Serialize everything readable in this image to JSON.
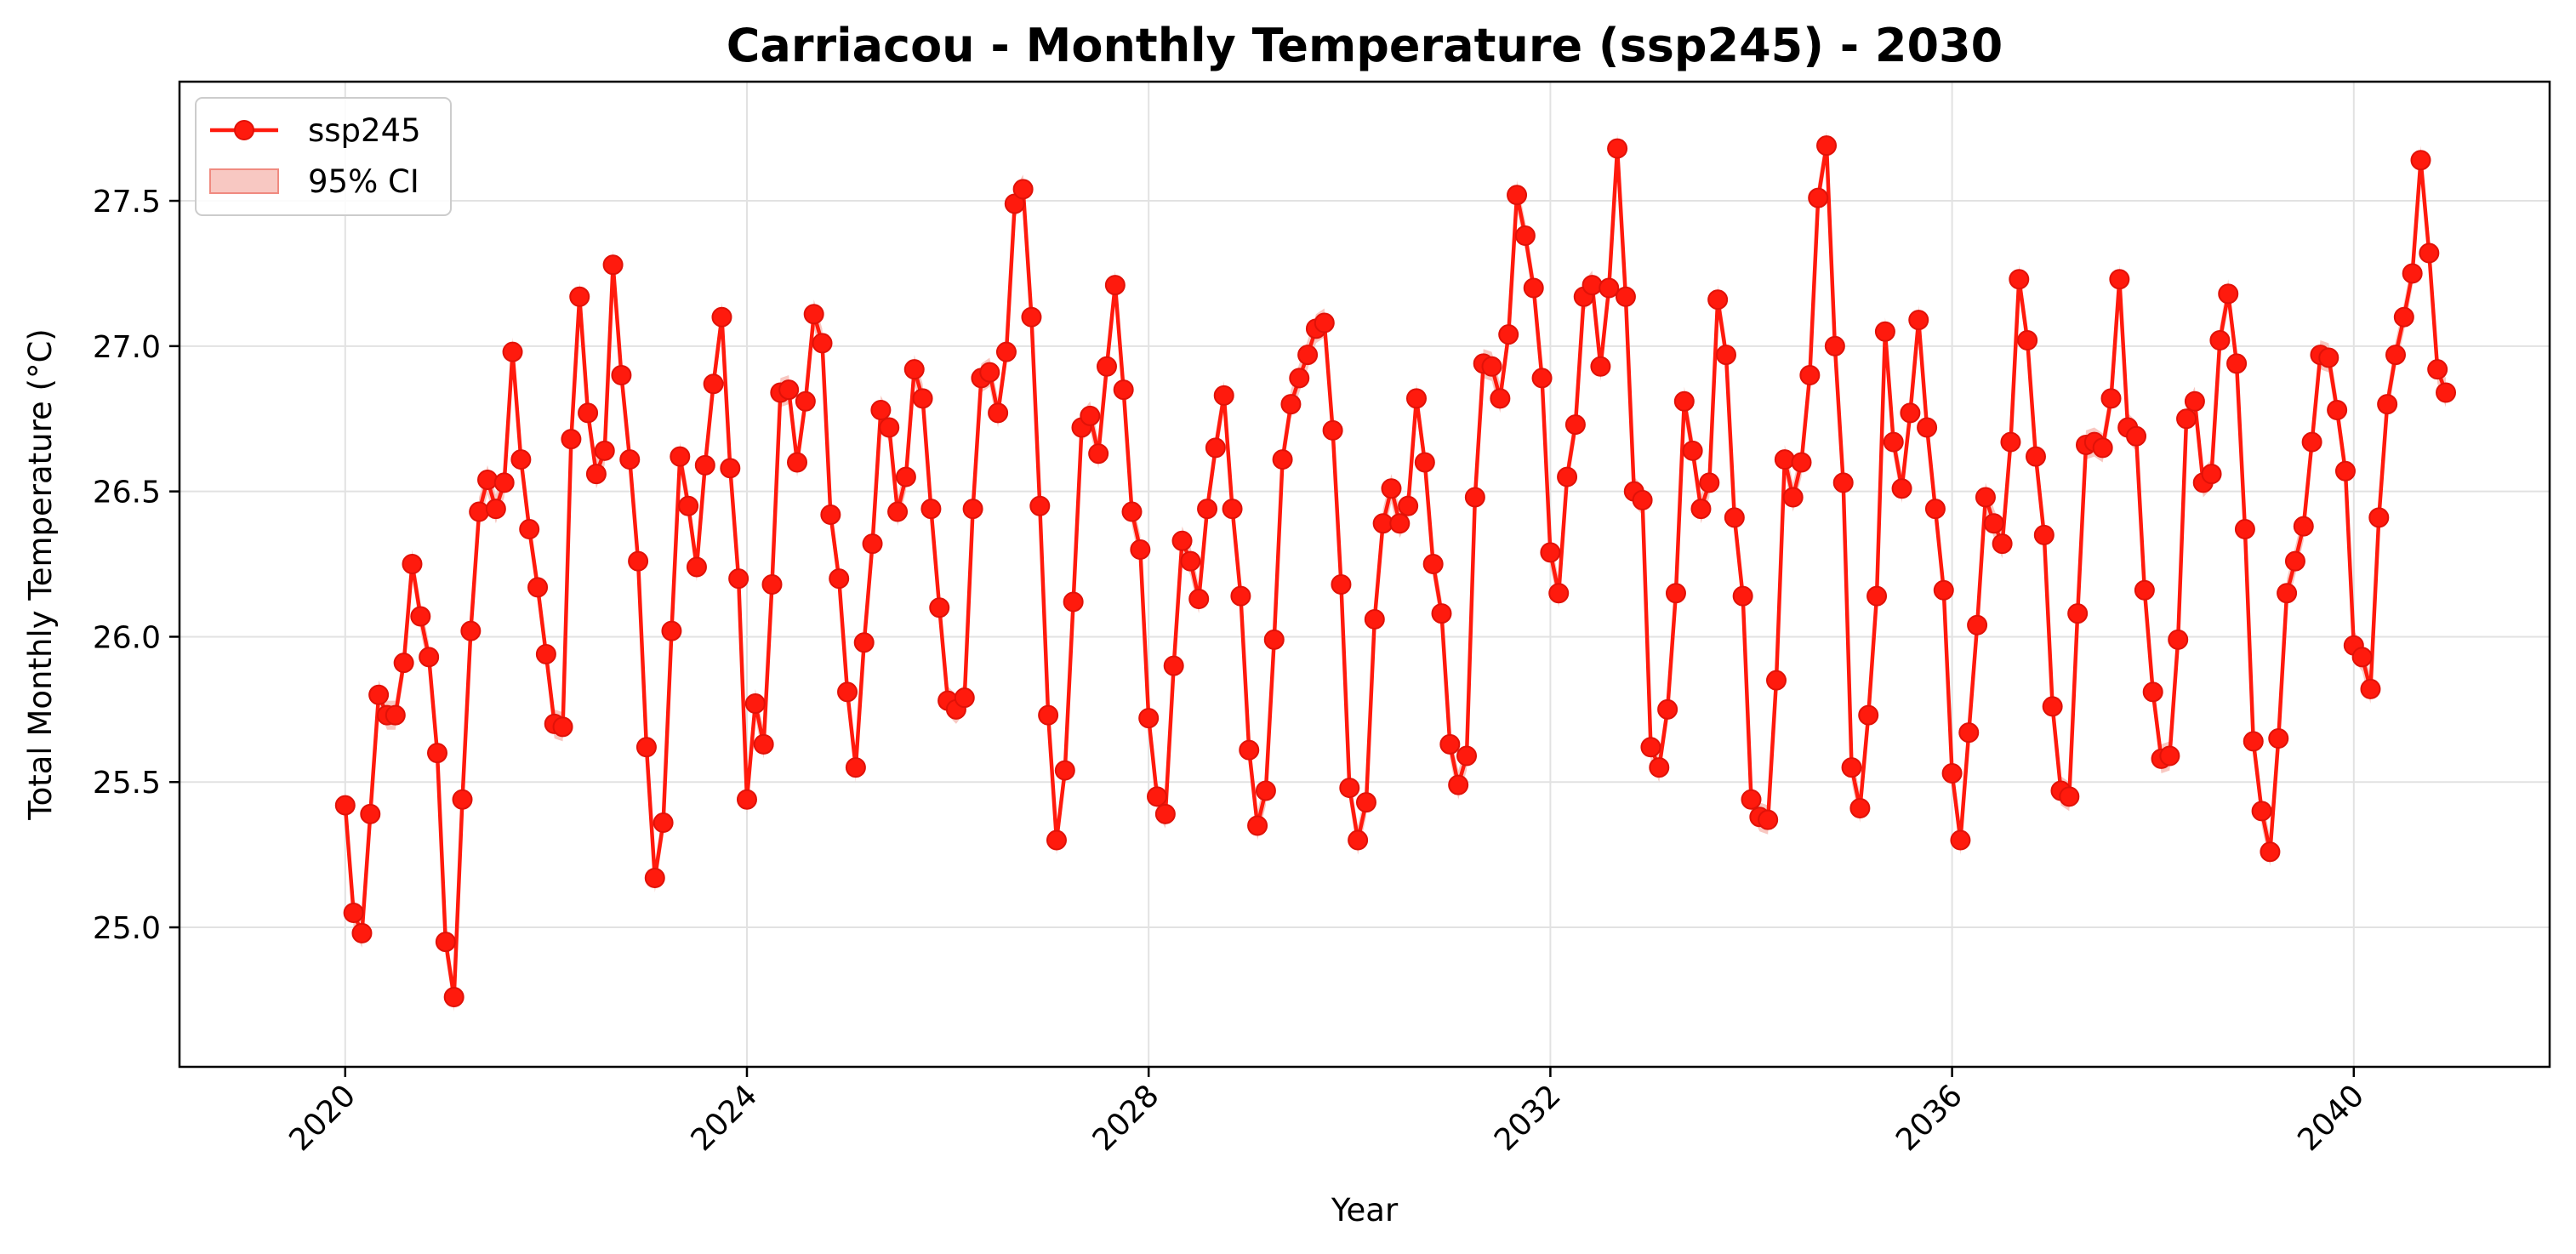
{
  "chart_data": {
    "type": "line",
    "title": "Carriacou - Monthly Temperature (ssp245) - 2030",
    "xlabel": "Year",
    "ylabel": "Total Monthly Temperature (°C)",
    "xlim": [
      2018.35,
      2041.95
    ],
    "ylim": [
      24.52,
      27.91
    ],
    "x_ticks": [
      2020,
      2024,
      2028,
      2032,
      2036,
      2040
    ],
    "x_tick_labels": [
      "2020",
      "2024",
      "2028",
      "2032",
      "2036",
      "2040"
    ],
    "y_ticks": [
      25.0,
      25.5,
      26.0,
      26.5,
      27.0,
      27.5
    ],
    "y_tick_labels": [
      "25.0",
      "25.5",
      "26.0",
      "26.5",
      "27.0",
      "27.5"
    ],
    "grid": true,
    "legend_position": "top-left",
    "legend": [
      {
        "label": "ssp245",
        "kind": "line-marker"
      },
      {
        "label": "95% CI",
        "kind": "band"
      }
    ],
    "colors": {
      "line": "#ff1a0d",
      "marker_edge": "#e01208",
      "band": "#f5b5ae",
      "grid": "#e2e2e2"
    },
    "ci_half_width": 0.05,
    "series": [
      {
        "name": "ssp245",
        "start_year": 2020,
        "start_month": 1,
        "values": [
          25.42,
          25.05,
          24.98,
          25.39,
          25.8,
          25.73,
          25.73,
          25.91,
          26.25,
          26.07,
          25.93,
          25.6,
          24.95,
          24.76,
          25.44,
          26.02,
          26.43,
          26.54,
          26.44,
          26.53,
          26.98,
          26.61,
          26.37,
          26.17,
          25.94,
          25.7,
          25.69,
          26.68,
          27.17,
          26.77,
          26.56,
          26.64,
          27.28,
          26.9,
          26.61,
          26.26,
          25.62,
          25.17,
          25.36,
          26.02,
          26.62,
          26.45,
          26.24,
          26.59,
          26.87,
          27.1,
          26.58,
          26.2,
          25.44,
          25.77,
          25.63,
          26.18,
          26.84,
          26.85,
          26.6,
          26.81,
          27.11,
          27.01,
          26.42,
          26.2,
          25.81,
          25.55,
          25.98,
          26.32,
          26.78,
          26.72,
          26.43,
          26.55,
          26.92,
          26.82,
          26.44,
          26.1,
          25.78,
          25.75,
          25.79,
          26.44,
          26.89,
          26.91,
          26.77,
          26.98,
          27.49,
          27.54,
          27.1,
          26.45,
          25.73,
          25.3,
          25.54,
          26.12,
          26.72,
          26.76,
          26.63,
          26.93,
          27.21,
          26.85,
          26.43,
          26.3,
          25.72,
          25.45,
          25.39,
          25.9,
          26.33,
          26.26,
          26.13,
          26.44,
          26.65,
          26.83,
          26.44,
          26.14,
          25.61,
          25.35,
          25.47,
          25.99,
          26.61,
          26.8,
          26.89,
          26.97,
          27.06,
          27.08,
          26.71,
          26.18,
          25.48,
          25.3,
          25.43,
          26.06,
          26.39,
          26.51,
          26.39,
          26.45,
          26.82,
          26.6,
          26.25,
          26.08,
          25.63,
          25.49,
          25.59,
          26.48,
          26.94,
          26.93,
          26.82,
          27.04,
          27.52,
          27.38,
          27.2,
          26.89,
          26.29,
          26.15,
          26.55,
          26.73,
          27.17,
          27.21,
          26.93,
          27.2,
          27.68,
          27.17,
          26.5,
          26.47,
          25.62,
          25.55,
          25.75,
          26.15,
          26.81,
          26.64,
          26.44,
          26.53,
          27.16,
          26.97,
          26.41,
          26.14,
          25.44,
          25.38,
          25.37,
          25.85,
          26.61,
          26.48,
          26.6,
          26.9,
          27.51,
          27.69,
          27.0,
          26.53,
          25.55,
          25.41,
          25.73,
          26.14,
          27.05,
          26.67,
          26.51,
          26.77,
          27.09,
          26.72,
          26.44,
          26.16,
          25.53,
          25.3,
          25.67,
          26.04,
          26.48,
          26.39,
          26.32,
          26.67,
          27.23,
          27.02,
          26.62,
          26.35,
          25.76,
          25.47,
          25.45,
          26.08,
          26.66,
          26.67,
          26.65,
          26.82,
          27.23,
          26.72,
          26.69,
          26.16,
          25.81,
          25.58,
          25.59,
          25.99,
          26.75,
          26.81,
          26.53,
          26.56,
          27.02,
          27.18,
          26.94,
          26.37,
          25.64,
          25.4,
          25.26,
          25.65,
          26.15,
          26.26,
          26.38,
          26.67,
          26.97,
          26.96,
          26.78,
          26.57,
          25.97,
          25.93,
          25.82,
          26.41,
          26.8,
          26.97,
          27.1,
          27.25,
          27.64,
          27.32,
          26.92,
          26.84
        ]
      }
    ]
  }
}
